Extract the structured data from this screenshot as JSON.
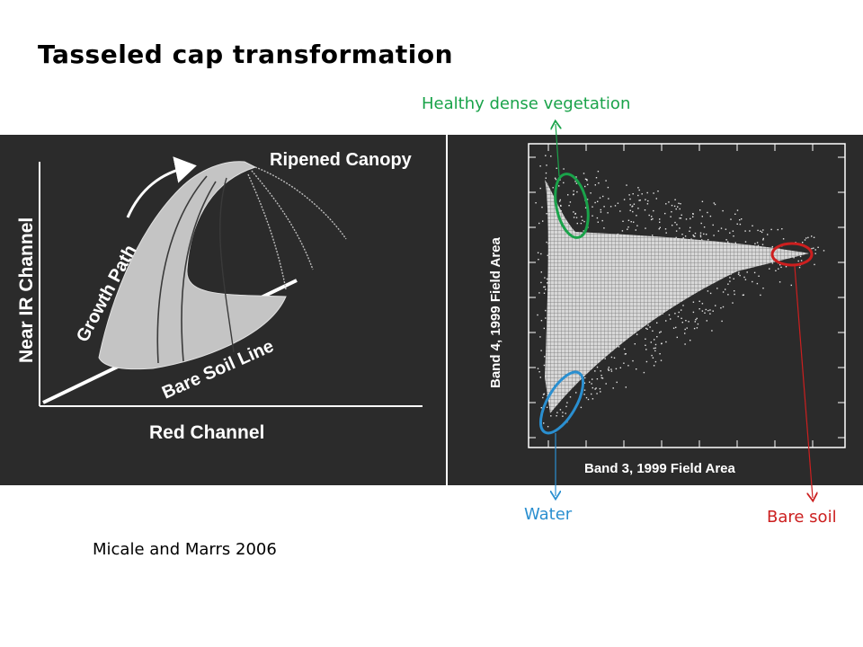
{
  "title": "Tasseled cap transformation",
  "citation": "Micale and Marrs 2006",
  "annotations": {
    "vegetation": "Healthy dense vegetation",
    "water": "Water",
    "bare_soil": "Bare soil"
  },
  "left_panel": {
    "ripened_canopy": "Ripened Canopy",
    "growth_path": "Growth Path",
    "bare_soil_line": "Bare Soil Line",
    "near_ir_channel": "Near IR Channel",
    "red_channel": "Red Channel"
  },
  "right_panel": {
    "xlabel": "Band 3, 1999 Field Area",
    "ylabel": "Band 4, 1999 Field Area"
  },
  "colors": {
    "vegetation": "#1aa34a",
    "water": "#2a8fd0",
    "bare_soil": "#cc1f1f",
    "panel_bg": "#2b2b2b",
    "canopy_fill": "#c4c4c4"
  }
}
